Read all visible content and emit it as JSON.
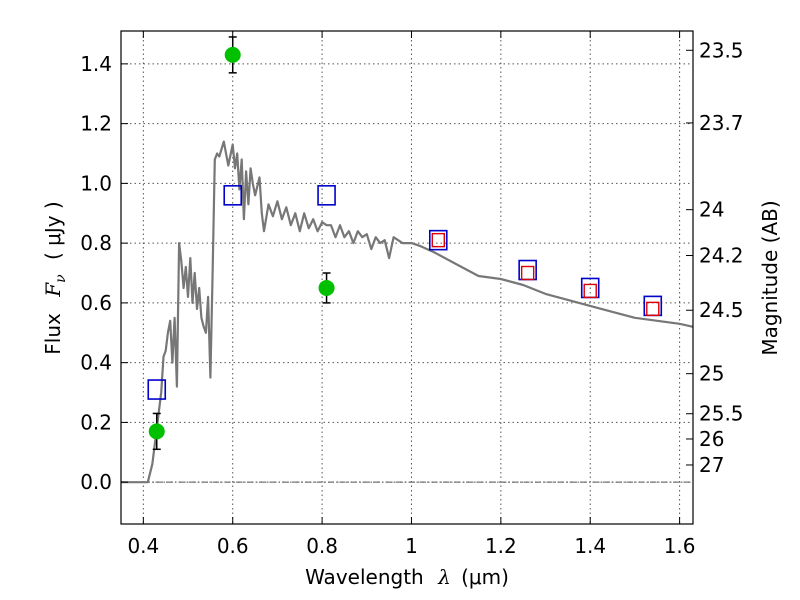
{
  "chart_data": {
    "type": "scatter",
    "x_axis": {
      "label_prefix": "Wavelength",
      "label_symbol": "λ",
      "label_unit": "(μm)",
      "lim": [
        0.35,
        1.63
      ],
      "ticks": [
        0.4,
        0.6,
        0.8,
        1.0,
        1.2,
        1.4,
        1.6
      ],
      "tick_labels": [
        "0.4",
        "0.6",
        "0.8",
        "1",
        "1.2",
        "1.4",
        "1.6"
      ]
    },
    "y_axis": {
      "label_prefix": "Flux",
      "label_symbol": "F",
      "label_subscript": "ν",
      "label_unit": "( μJy )",
      "lim": [
        -0.14,
        1.51
      ],
      "ticks": [
        0.0,
        0.2,
        0.4,
        0.6,
        0.8,
        1.0,
        1.2,
        1.4
      ],
      "tick_labels": [
        "0.0",
        "0.2",
        "0.4",
        "0.6",
        "0.8",
        "1.0",
        "1.2",
        "1.4"
      ]
    },
    "y2_axis": {
      "label": "Magnitude (AB)",
      "tick_labels": [
        "23.5",
        "23.7",
        "24",
        "24.2",
        "24.5",
        "25",
        "25.5",
        "26",
        "27"
      ]
    },
    "grid": true,
    "zero_line": true,
    "series": [
      {
        "kind": "line",
        "color": "#777777",
        "x": [
          0.35,
          0.41,
          0.42,
          0.43,
          0.44,
          0.445,
          0.45,
          0.455,
          0.46,
          0.465,
          0.47,
          0.475,
          0.48,
          0.485,
          0.49,
          0.495,
          0.5,
          0.505,
          0.51,
          0.515,
          0.52,
          0.525,
          0.53,
          0.535,
          0.54,
          0.545,
          0.55,
          0.555,
          0.56,
          0.565,
          0.57,
          0.58,
          0.59,
          0.6,
          0.605,
          0.61,
          0.615,
          0.62,
          0.625,
          0.63,
          0.635,
          0.64,
          0.645,
          0.65,
          0.66,
          0.665,
          0.67,
          0.68,
          0.69,
          0.7,
          0.71,
          0.72,
          0.73,
          0.74,
          0.75,
          0.76,
          0.77,
          0.78,
          0.79,
          0.8,
          0.81,
          0.82,
          0.83,
          0.84,
          0.85,
          0.86,
          0.87,
          0.88,
          0.89,
          0.9,
          0.91,
          0.92,
          0.93,
          0.94,
          0.95,
          0.96,
          0.98,
          1.0,
          1.02,
          1.05,
          1.1,
          1.15,
          1.2,
          1.25,
          1.3,
          1.35,
          1.4,
          1.45,
          1.5,
          1.55,
          1.6,
          1.63
        ],
        "y": [
          0.0,
          0.0,
          0.06,
          0.18,
          0.3,
          0.42,
          0.44,
          0.5,
          0.54,
          0.4,
          0.55,
          0.32,
          0.8,
          0.74,
          0.65,
          0.72,
          0.62,
          0.75,
          0.6,
          0.7,
          0.58,
          0.65,
          0.55,
          0.52,
          0.5,
          0.62,
          0.35,
          0.7,
          1.08,
          1.1,
          1.09,
          1.14,
          1.06,
          1.13,
          1.05,
          1.1,
          0.98,
          1.08,
          0.88,
          1.04,
          0.93,
          1.05,
          1.0,
          0.96,
          1.02,
          0.9,
          0.84,
          0.93,
          0.89,
          0.94,
          0.88,
          0.92,
          0.86,
          0.9,
          0.84,
          0.9,
          0.85,
          0.88,
          0.84,
          0.87,
          0.86,
          0.86,
          0.82,
          0.86,
          0.82,
          0.84,
          0.8,
          0.84,
          0.82,
          0.83,
          0.78,
          0.82,
          0.8,
          0.81,
          0.75,
          0.82,
          0.8,
          0.8,
          0.79,
          0.77,
          0.73,
          0.69,
          0.68,
          0.66,
          0.63,
          0.61,
          0.59,
          0.57,
          0.55,
          0.54,
          0.53,
          0.52
        ]
      },
      {
        "kind": "points",
        "marker": "circle",
        "color": "#00c000",
        "x": [
          0.43,
          0.6,
          0.81
        ],
        "y": [
          0.17,
          1.43,
          0.65
        ],
        "yerr": [
          0.06,
          0.06,
          0.05
        ]
      },
      {
        "kind": "points",
        "marker": "open-square-large",
        "color": "#0000cc",
        "x": [
          0.43,
          0.6,
          0.81,
          1.06,
          1.26,
          1.4,
          1.54
        ],
        "y": [
          0.31,
          0.96,
          0.96,
          0.81,
          0.71,
          0.65,
          0.59
        ]
      },
      {
        "kind": "points",
        "marker": "open-square-small",
        "color": "#dd0000",
        "x": [
          1.06,
          1.26,
          1.4,
          1.54
        ],
        "y": [
          0.81,
          0.7,
          0.64,
          0.58
        ]
      }
    ]
  }
}
